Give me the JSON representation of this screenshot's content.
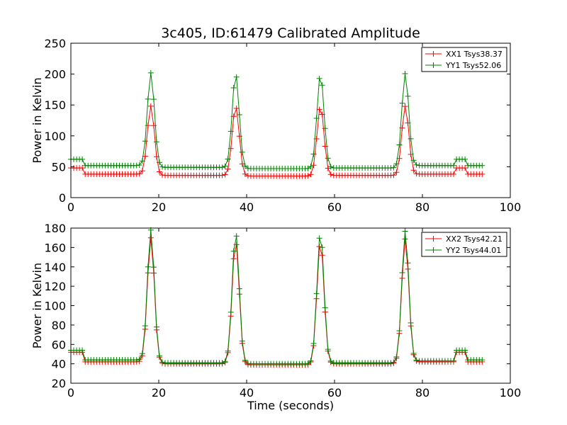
{
  "figure": {
    "title": "3c405, ID:61479 Calibrated Amplitude"
  },
  "chart_data": [
    {
      "type": "line",
      "title": "3c405, ID:61479 Calibrated Amplitude",
      "xlabel": "",
      "ylabel": "Power in Kelvin",
      "xlim": [
        0,
        100
      ],
      "ylim": [
        0,
        250
      ],
      "xticks": [
        0,
        20,
        40,
        60,
        80,
        100
      ],
      "yticks": [
        0,
        50,
        100,
        150,
        200,
        250
      ],
      "grid": false,
      "legend_position": "top-right",
      "marker": "+",
      "series": [
        {
          "name": "XX1 Tsys38.37",
          "color": "#ff0000",
          "baselines": [
            [
              0,
              3,
              48
            ],
            [
              3,
              15.5,
              38
            ],
            [
              20.5,
              35,
              36
            ],
            [
              39.5,
              54.5,
              35
            ],
            [
              59,
              73.8,
              36
            ],
            [
              78.5,
              87.5,
              38
            ],
            [
              87.5,
              90,
              48
            ],
            [
              90,
              94,
              38
            ]
          ],
          "peaks": [
            [
              18.2,
              148
            ],
            [
              37.5,
              148
            ],
            [
              56.8,
              148
            ],
            [
              76.1,
              148
            ]
          ],
          "x": [
            0,
            1,
            2,
            2.5,
            3,
            5,
            10,
            15,
            16,
            17,
            18.2,
            19.5,
            20.5,
            22,
            30,
            35,
            36,
            37.5,
            38.5,
            39.5,
            45,
            54.5,
            55.5,
            56.8,
            58,
            59,
            65,
            73.8,
            75,
            76.1,
            77.5,
            78.5,
            85,
            87.5,
            88.5,
            89.5,
            90,
            94
          ],
          "y": [
            48,
            48,
            48,
            47,
            38,
            38,
            38,
            38,
            43,
            90,
            148,
            90,
            38,
            36,
            36,
            36,
            90,
            148,
            90,
            35,
            35,
            35,
            90,
            148,
            90,
            36,
            36,
            36,
            90,
            148,
            90,
            38,
            38,
            38,
            48,
            48,
            38,
            38
          ]
        },
        {
          "name": "YY1 Tsys52.06",
          "color": "#008000",
          "baselines": [
            [
              0,
              3,
              62
            ],
            [
              3,
              15.5,
              52
            ],
            [
              20.5,
              35,
              49
            ],
            [
              39.5,
              54.5,
              47
            ],
            [
              59,
              73.8,
              48
            ],
            [
              78.5,
              87.5,
              52
            ],
            [
              87.5,
              90,
              62
            ],
            [
              90,
              94,
              52
            ]
          ],
          "peaks": [
            [
              18.2,
              202
            ],
            [
              37.5,
              200
            ],
            [
              56.8,
              200
            ],
            [
              76.1,
              201
            ]
          ],
          "x": [
            0,
            1,
            2,
            2.5,
            3,
            5,
            10,
            15,
            16,
            17,
            18.2,
            19.5,
            20.5,
            22,
            30,
            35,
            36,
            37.5,
            38.5,
            39.5,
            45,
            54.5,
            55.5,
            56.8,
            58,
            59,
            65,
            73.8,
            75,
            76.1,
            77.5,
            78.5,
            85,
            87.5,
            88.5,
            89.5,
            90,
            94
          ],
          "y": [
            62,
            62,
            62,
            60,
            52,
            52,
            51,
            50,
            60,
            120,
            202,
            120,
            49,
            48,
            48,
            49,
            120,
            200,
            120,
            47,
            47,
            47,
            120,
            200,
            120,
            48,
            47,
            48,
            120,
            201,
            120,
            52,
            52,
            52,
            62,
            62,
            52,
            52
          ]
        }
      ]
    },
    {
      "type": "line",
      "title": "",
      "xlabel": "Time (seconds)",
      "ylabel": "Power in Kelvin",
      "xlim": [
        0,
        100
      ],
      "ylim": [
        20,
        180
      ],
      "xticks": [
        0,
        20,
        40,
        60,
        80,
        100
      ],
      "yticks": [
        20,
        40,
        60,
        80,
        100,
        120,
        140,
        160,
        180
      ],
      "grid": false,
      "legend_position": "top-right",
      "marker": "+",
      "series": [
        {
          "name": "XX2 Tsys42.21",
          "color": "#ff0000",
          "baselines": [
            [
              0,
              3,
              52
            ],
            [
              3,
              15.5,
              42
            ],
            [
              20.5,
              35,
              40
            ],
            [
              39.5,
              54.5,
              39
            ],
            [
              59,
              73.8,
              40
            ],
            [
              78.5,
              87.5,
              42
            ],
            [
              87.5,
              90,
              52
            ],
            [
              90,
              94,
              42
            ]
          ],
          "peaks": [
            [
              18.2,
              170
            ],
            [
              37.5,
              167
            ],
            [
              56.8,
              167
            ],
            [
              76.1,
              169
            ]
          ],
          "x": [
            0,
            1,
            2,
            2.5,
            3,
            5,
            10,
            15,
            16,
            17,
            18.2,
            19.5,
            20.5,
            22,
            30,
            35,
            36,
            37.5,
            38.5,
            39.5,
            45,
            54.5,
            55.5,
            56.8,
            58,
            59,
            65,
            73.8,
            75,
            76.1,
            77.5,
            78.5,
            85,
            87.5,
            88.5,
            89.5,
            90,
            94
          ],
          "y": [
            52,
            52,
            52,
            50,
            42,
            42,
            42,
            42,
            50,
            105,
            170,
            105,
            40,
            39,
            40,
            40,
            105,
            167,
            105,
            39,
            39,
            39,
            105,
            167,
            105,
            40,
            40,
            40,
            105,
            169,
            105,
            42,
            42,
            42,
            52,
            52,
            42,
            42
          ]
        },
        {
          "name": "YY2 Tsys44.01",
          "color": "#008000",
          "baselines": [
            [
              0,
              3,
              54
            ],
            [
              3,
              15.5,
              44
            ],
            [
              20.5,
              35,
              41
            ],
            [
              39.5,
              54.5,
              40
            ],
            [
              59,
              73.8,
              41
            ],
            [
              78.5,
              87.5,
              43
            ],
            [
              87.5,
              90,
              54
            ],
            [
              90,
              94,
              44
            ]
          ],
          "peaks": [
            [
              18.2,
              178
            ],
            [
              37.5,
              176
            ],
            [
              56.8,
              176
            ],
            [
              76.1,
              177
            ]
          ],
          "x": [
            0,
            1,
            2,
            2.5,
            3,
            5,
            10,
            15,
            16,
            17,
            18.2,
            19.5,
            20.5,
            22,
            30,
            35,
            36,
            37.5,
            38.5,
            39.5,
            45,
            54.5,
            55.5,
            56.8,
            58,
            59,
            65,
            73.8,
            75,
            76.1,
            77.5,
            78.5,
            85,
            87.5,
            88.5,
            89.5,
            90,
            94
          ],
          "y": [
            54,
            54,
            54,
            52,
            44,
            44,
            44,
            43,
            52,
            110,
            178,
            110,
            41,
            41,
            41,
            42,
            110,
            176,
            110,
            40,
            40,
            40,
            110,
            176,
            110,
            41,
            41,
            41,
            110,
            177,
            110,
            43,
            43,
            43,
            54,
            54,
            44,
            44
          ]
        }
      ]
    }
  ]
}
